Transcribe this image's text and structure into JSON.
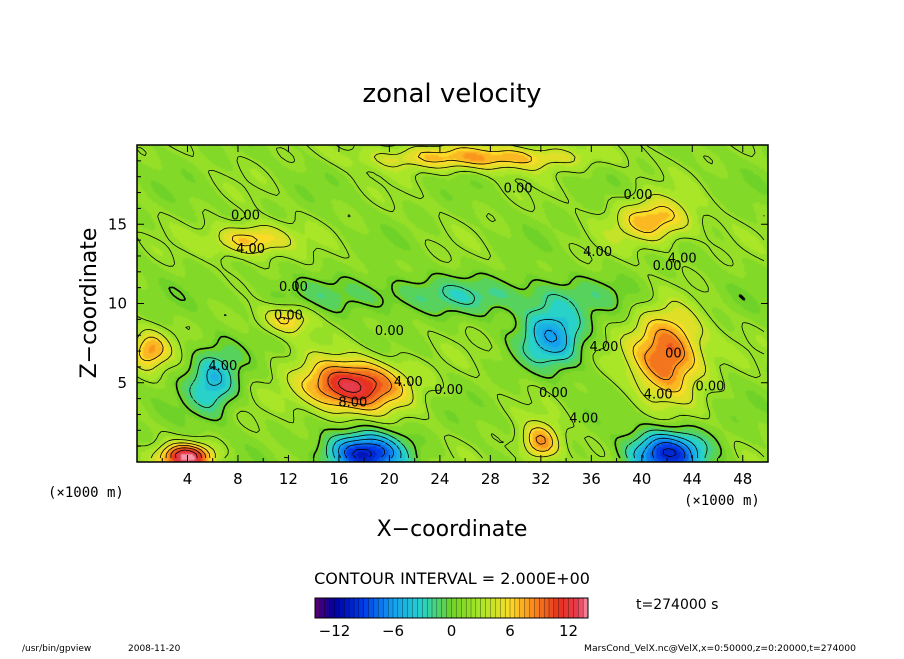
{
  "chart_data": {
    "type": "heatmap",
    "subtype": "filled-contour",
    "title": "zonal velocity",
    "xlabel": "X−coordinate",
    "ylabel": "Z−coordinate",
    "x_units": "(×1000 m)",
    "z_units": "(×1000 m)",
    "xlim": [
      0,
      50
    ],
    "ylim": [
      0,
      20
    ],
    "xticks": [
      4,
      8,
      12,
      16,
      20,
      24,
      28,
      32,
      36,
      40,
      44,
      48
    ],
    "yticks": [
      5,
      10,
      15
    ],
    "contour_interval_text": "CONTOUR INTERVAL = 2.000E+00",
    "contour_interval": 2.0,
    "colorbar": {
      "range": [
        -14,
        14
      ],
      "ticks": [
        -12,
        -6,
        0,
        6,
        12
      ],
      "tick_labels": [
        "−12",
        "−6",
        "0",
        "6",
        "12"
      ]
    },
    "time_label": "t=274000 s",
    "contour_labels": [
      {
        "text": "0.00",
        "x": 30.2,
        "z": 17.0
      },
      {
        "text": "0.00",
        "x": 39.7,
        "z": 16.6
      },
      {
        "text": "0.00",
        "x": 8.6,
        "z": 15.3
      },
      {
        "text": "4.00",
        "x": 9.0,
        "z": 13.2
      },
      {
        "text": "4.00",
        "x": 36.5,
        "z": 13.0
      },
      {
        "text": "4.00",
        "x": 43.2,
        "z": 12.6
      },
      {
        "text": "0.00",
        "x": 42.0,
        "z": 12.1
      },
      {
        "text": "0.00",
        "x": 12.4,
        "z": 10.8
      },
      {
        "text": "0.00",
        "x": 12.0,
        "z": 9.0
      },
      {
        "text": "0.00",
        "x": 20.0,
        "z": 8.0
      },
      {
        "text": "4.00",
        "x": 6.8,
        "z": 5.8
      },
      {
        "text": "4.00",
        "x": 37.0,
        "z": 7.0
      },
      {
        "text": "4.00",
        "x": 21.5,
        "z": 4.8
      },
      {
        "text": "0.00",
        "x": 24.7,
        "z": 4.3
      },
      {
        "text": "8.00",
        "x": 17.1,
        "z": 3.5
      },
      {
        "text": "0.00",
        "x": 33.0,
        "z": 4.1
      },
      {
        "text": "4.00",
        "x": 35.4,
        "z": 2.5
      },
      {
        "text": "4.00",
        "x": 41.3,
        "z": 4.0
      },
      {
        "text": "00",
        "x": 42.5,
        "z": 6.6
      },
      {
        "text": "0.00",
        "x": 45.4,
        "z": 4.5
      }
    ],
    "field_features": [
      {
        "x": 17,
        "z": 4.8,
        "value": 11,
        "sx": 4.0,
        "sz": 1.6
      },
      {
        "x": 42,
        "z": 6.8,
        "value": 9,
        "sx": 2.8,
        "sz": 2.6
      },
      {
        "x": 41,
        "z": 15.2,
        "value": 6,
        "sx": 3.0,
        "sz": 1.4
      },
      {
        "x": 9,
        "z": 14.0,
        "value": 6,
        "sx": 3.0,
        "sz": 1.0
      },
      {
        "x": 27,
        "z": 19.2,
        "value": 6,
        "sx": 8.0,
        "sz": 0.8
      },
      {
        "x": 33,
        "z": 8.0,
        "value": -7,
        "sx": 2.5,
        "sz": 2.0
      },
      {
        "x": 6,
        "z": 5.0,
        "value": -6,
        "sx": 2.0,
        "sz": 2.0
      },
      {
        "x": 18,
        "z": 0.5,
        "value": -12,
        "sx": 3.0,
        "sz": 1.3
      },
      {
        "x": 42,
        "z": 0.5,
        "value": -11,
        "sx": 3.0,
        "sz": 1.4
      },
      {
        "x": 4,
        "z": 0.3,
        "value": 12,
        "sx": 2.0,
        "sz": 0.8
      },
      {
        "x": 32,
        "z": 1.2,
        "value": 7,
        "sx": 1.5,
        "sz": 1.2
      },
      {
        "x": 25,
        "z": 10.5,
        "value": -3,
        "sx": 14,
        "sz": 1.2
      },
      {
        "x": 12,
        "z": 9.0,
        "value": 5,
        "sx": 2.0,
        "sz": 0.9
      },
      {
        "x": 1,
        "z": 7.0,
        "value": 6,
        "sx": 1.5,
        "sz": 1.2
      }
    ]
  },
  "footer": {
    "program": "/usr/bin/gpview",
    "date": "2008-11-20",
    "source": "MarsCond_VelX.nc@VelX,x=0:50000,z=0:20000,t=274000"
  },
  "colors": {
    "background": "#ffffff",
    "field_base": "#66cc33",
    "frame": "#000000"
  }
}
